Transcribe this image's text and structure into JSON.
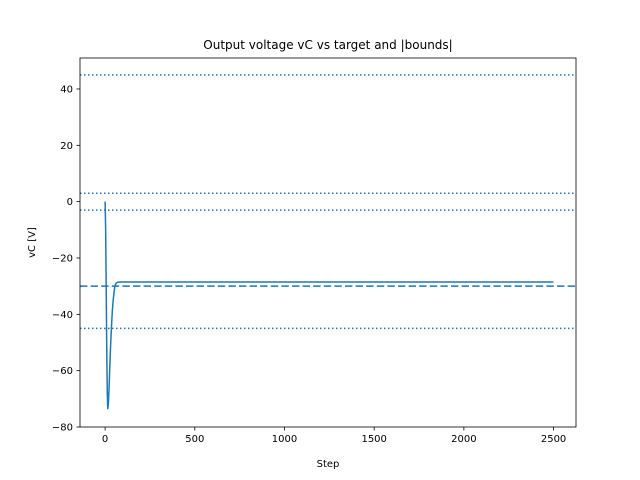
{
  "chart_data": {
    "type": "line",
    "title": "Output voltage vC vs target and |bounds|",
    "xlabel": "Step",
    "ylabel": "vC [V]",
    "xlim": [
      -140,
      2625
    ],
    "ylim": [
      -80,
      51
    ],
    "x_ticks": [
      0,
      500,
      1000,
      1500,
      2000,
      2500
    ],
    "y_ticks": [
      -80,
      -60,
      -40,
      -20,
      0,
      20,
      40
    ],
    "grid": false,
    "color": "#1f77b4",
    "series": [
      {
        "style": "solid",
        "x": [
          0,
          3,
          6,
          9,
          12,
          15,
          18,
          22,
          26,
          30,
          35,
          40,
          45,
          50,
          55,
          60,
          70,
          80,
          100,
          200,
          500,
          1000,
          1500,
          2000,
          2499
        ],
        "y": [
          0,
          -10,
          -30,
          -52,
          -68,
          -73.5,
          -72,
          -66,
          -59,
          -52,
          -45,
          -39,
          -35,
          -32,
          -30,
          -29,
          -28.6,
          -28.5,
          -28.5,
          -28.5,
          -28.5,
          -28.5,
          -28.5,
          -28.5,
          -28.5
        ]
      }
    ],
    "reference_lines": [
      {
        "y": 45,
        "style": "dotted"
      },
      {
        "y": 3,
        "style": "dotted"
      },
      {
        "y": -3,
        "style": "dotted"
      },
      {
        "y": -30,
        "style": "dashed"
      },
      {
        "y": -45,
        "style": "dotted"
      }
    ]
  }
}
